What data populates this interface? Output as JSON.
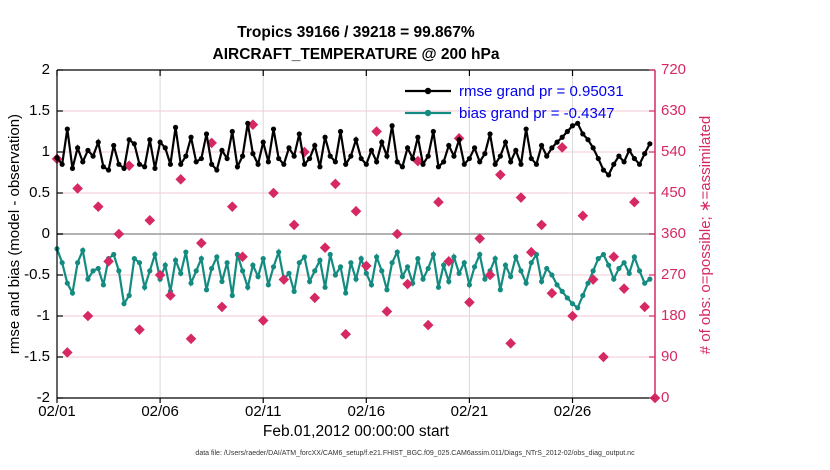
{
  "title": {
    "line1": "Tropics 39166 / 39218 = 99.867%",
    "line2": "AIRCRAFT_TEMPERATURE @ 200 hPa"
  },
  "legend": {
    "text_color": "#0000ee",
    "entries": [
      {
        "name": "rmse",
        "label": "rmse grand pr = 0.95031",
        "color": "#000000"
      },
      {
        "name": "bias",
        "label": "bias grand pr = -0.4347",
        "color": "#148b80"
      }
    ]
  },
  "footer": "data file: /Users/raeder/DAI/ATM_forcXX/CAM6_setup/f.e21.FHIST_BGC.f09_025.CAM6assim.011/Diags_NTrS_2012-02/obs_diag_output.nc",
  "colors": {
    "pink": "#d62963",
    "pink_grid": "#f3c9d6",
    "teal": "#148b80",
    "legend_blue": "#0000ee",
    "zero_line": "#b3b3b3",
    "vgrid": "#d9d9d9",
    "axis_black": "#000000"
  },
  "chart_data": {
    "type": "line",
    "title": "Tropics 39166 / 39218 = 99.867% | AIRCRAFT_TEMPERATURE @ 200 hPa",
    "xlabel": "Feb.01,2012 00:00:00 start",
    "ylabel_left": "rmse and bias (model - observation)",
    "ylabel_right": "# of obs: o=possible; ∗=assimilated",
    "x_ticks": [
      "02/01",
      "02/06",
      "02/11",
      "02/16",
      "02/21",
      "02/26"
    ],
    "x_tick_days": [
      0,
      5,
      10,
      15,
      20,
      25
    ],
    "x_range_days": [
      0,
      29
    ],
    "ylim_left": [
      -2,
      2
    ],
    "yticks_left": [
      2,
      1.5,
      1,
      0.5,
      0,
      -0.5,
      -1,
      -1.5,
      -2
    ],
    "ylim_right": [
      0,
      720
    ],
    "yticks_right": [
      720,
      630,
      540,
      450,
      360,
      270,
      180,
      90,
      0
    ],
    "grid": {
      "horizontal": "pink lines at right-axis ticks",
      "vertical": "gray lines at date ticks",
      "zero_line": "gray at y=0"
    },
    "legend_position": "top-right inside plot",
    "series": [
      {
        "name": "rmse",
        "color": "#000000",
        "t_start_days": 0,
        "t_step_days": 0.25,
        "values": [
          0.93,
          0.85,
          1.28,
          0.8,
          1.05,
          0.88,
          1.02,
          0.95,
          1.12,
          0.82,
          0.78,
          1.08,
          0.85,
          0.8,
          1.15,
          1.1,
          0.85,
          0.82,
          1.15,
          0.8,
          1.12,
          1.05,
          0.85,
          1.3,
          0.85,
          0.95,
          1.18,
          0.88,
          0.92,
          1.22,
          0.85,
          0.78,
          1.02,
          0.92,
          1.25,
          0.82,
          0.95,
          1.35,
          0.98,
          0.85,
          1.12,
          0.88,
          1.28,
          0.92,
          0.85,
          1.05,
          0.95,
          1.22,
          0.85,
          0.92,
          1.08,
          0.82,
          1.18,
          0.95,
          0.88,
          1.25,
          0.85,
          0.95,
          1.15,
          0.92,
          0.85,
          1.02,
          0.88,
          1.12,
          0.95,
          1.32,
          0.88,
          0.82,
          1.05,
          0.92,
          1.18,
          0.85,
          0.95,
          1.25,
          0.82,
          0.88,
          1.08,
          0.95,
          1.15,
          0.85,
          0.92,
          1.05,
          0.88,
          0.98,
          1.22,
          0.85,
          0.95,
          1.12,
          0.88,
          1.02,
          0.85,
          1.28,
          0.92,
          0.85,
          1.08,
          0.95,
          1.05,
          1.12,
          1.18,
          1.25,
          1.32,
          1.35,
          1.22,
          1.15,
          1.05,
          0.92,
          0.78,
          0.72,
          0.85,
          0.95,
          0.88,
          1.02,
          0.92,
          0.85,
          0.98,
          1.1
        ]
      },
      {
        "name": "bias",
        "color": "#148b80",
        "t_start_days": 0,
        "t_step_days": 0.25,
        "values": [
          -0.18,
          -0.35,
          -0.6,
          -0.72,
          -0.35,
          -0.2,
          -0.55,
          -0.45,
          -0.42,
          -0.62,
          -0.3,
          -0.25,
          -0.45,
          -0.85,
          -0.75,
          -0.3,
          -0.35,
          -0.65,
          -0.45,
          -0.25,
          -0.55,
          -0.38,
          -0.7,
          -0.32,
          -0.48,
          -0.22,
          -0.6,
          -0.45,
          -0.3,
          -0.68,
          -0.42,
          -0.28,
          -0.58,
          -0.35,
          -0.75,
          -0.25,
          -0.45,
          -0.65,
          -0.38,
          -0.52,
          -0.3,
          -0.62,
          -0.4,
          -0.22,
          -0.55,
          -0.48,
          -0.7,
          -0.35,
          -0.28,
          -0.58,
          -0.45,
          -0.32,
          -0.65,
          -0.25,
          -0.5,
          -0.4,
          -0.72,
          -0.35,
          -0.55,
          -0.3,
          -0.48,
          -0.62,
          -0.28,
          -0.45,
          -0.68,
          -0.35,
          -0.22,
          -0.52,
          -0.4,
          -0.6,
          -0.3,
          -0.55,
          -0.42,
          -0.25,
          -0.65,
          -0.38,
          -0.58,
          -0.28,
          -0.48,
          -0.35,
          -0.62,
          -0.4,
          -0.25,
          -0.55,
          -0.45,
          -0.3,
          -0.68,
          -0.38,
          -0.52,
          -0.28,
          -0.45,
          -0.6,
          -0.35,
          -0.25,
          -0.58,
          -0.42,
          -0.5,
          -0.62,
          -0.7,
          -0.78,
          -0.85,
          -0.9,
          -0.75,
          -0.6,
          -0.45,
          -0.3,
          -0.25,
          -0.38,
          -0.55,
          -0.42,
          -0.35,
          -0.48,
          -0.28,
          -0.45,
          -0.6,
          -0.55
        ]
      }
    ],
    "obs_counts": {
      "name": "# of obs (possible = assimilated markers overlap)",
      "color": "#d62963",
      "marker": "diamond",
      "t_start_days": 0,
      "t_step_days": 0.5,
      "values": [
        525,
        100,
        460,
        180,
        420,
        300,
        360,
        510,
        150,
        390,
        270,
        225,
        480,
        130,
        340,
        560,
        200,
        420,
        310,
        600,
        170,
        450,
        260,
        380,
        540,
        220,
        330,
        470,
        140,
        410,
        290,
        585,
        190,
        360,
        250,
        520,
        160,
        430,
        300,
        570,
        210,
        350,
        270,
        490,
        120,
        440,
        320,
        380,
        230,
        550,
        180,
        400,
        260,
        90,
        310,
        240,
        430,
        200
      ],
      "final_point": {
        "t_days": 29,
        "value": 0
      }
    }
  }
}
